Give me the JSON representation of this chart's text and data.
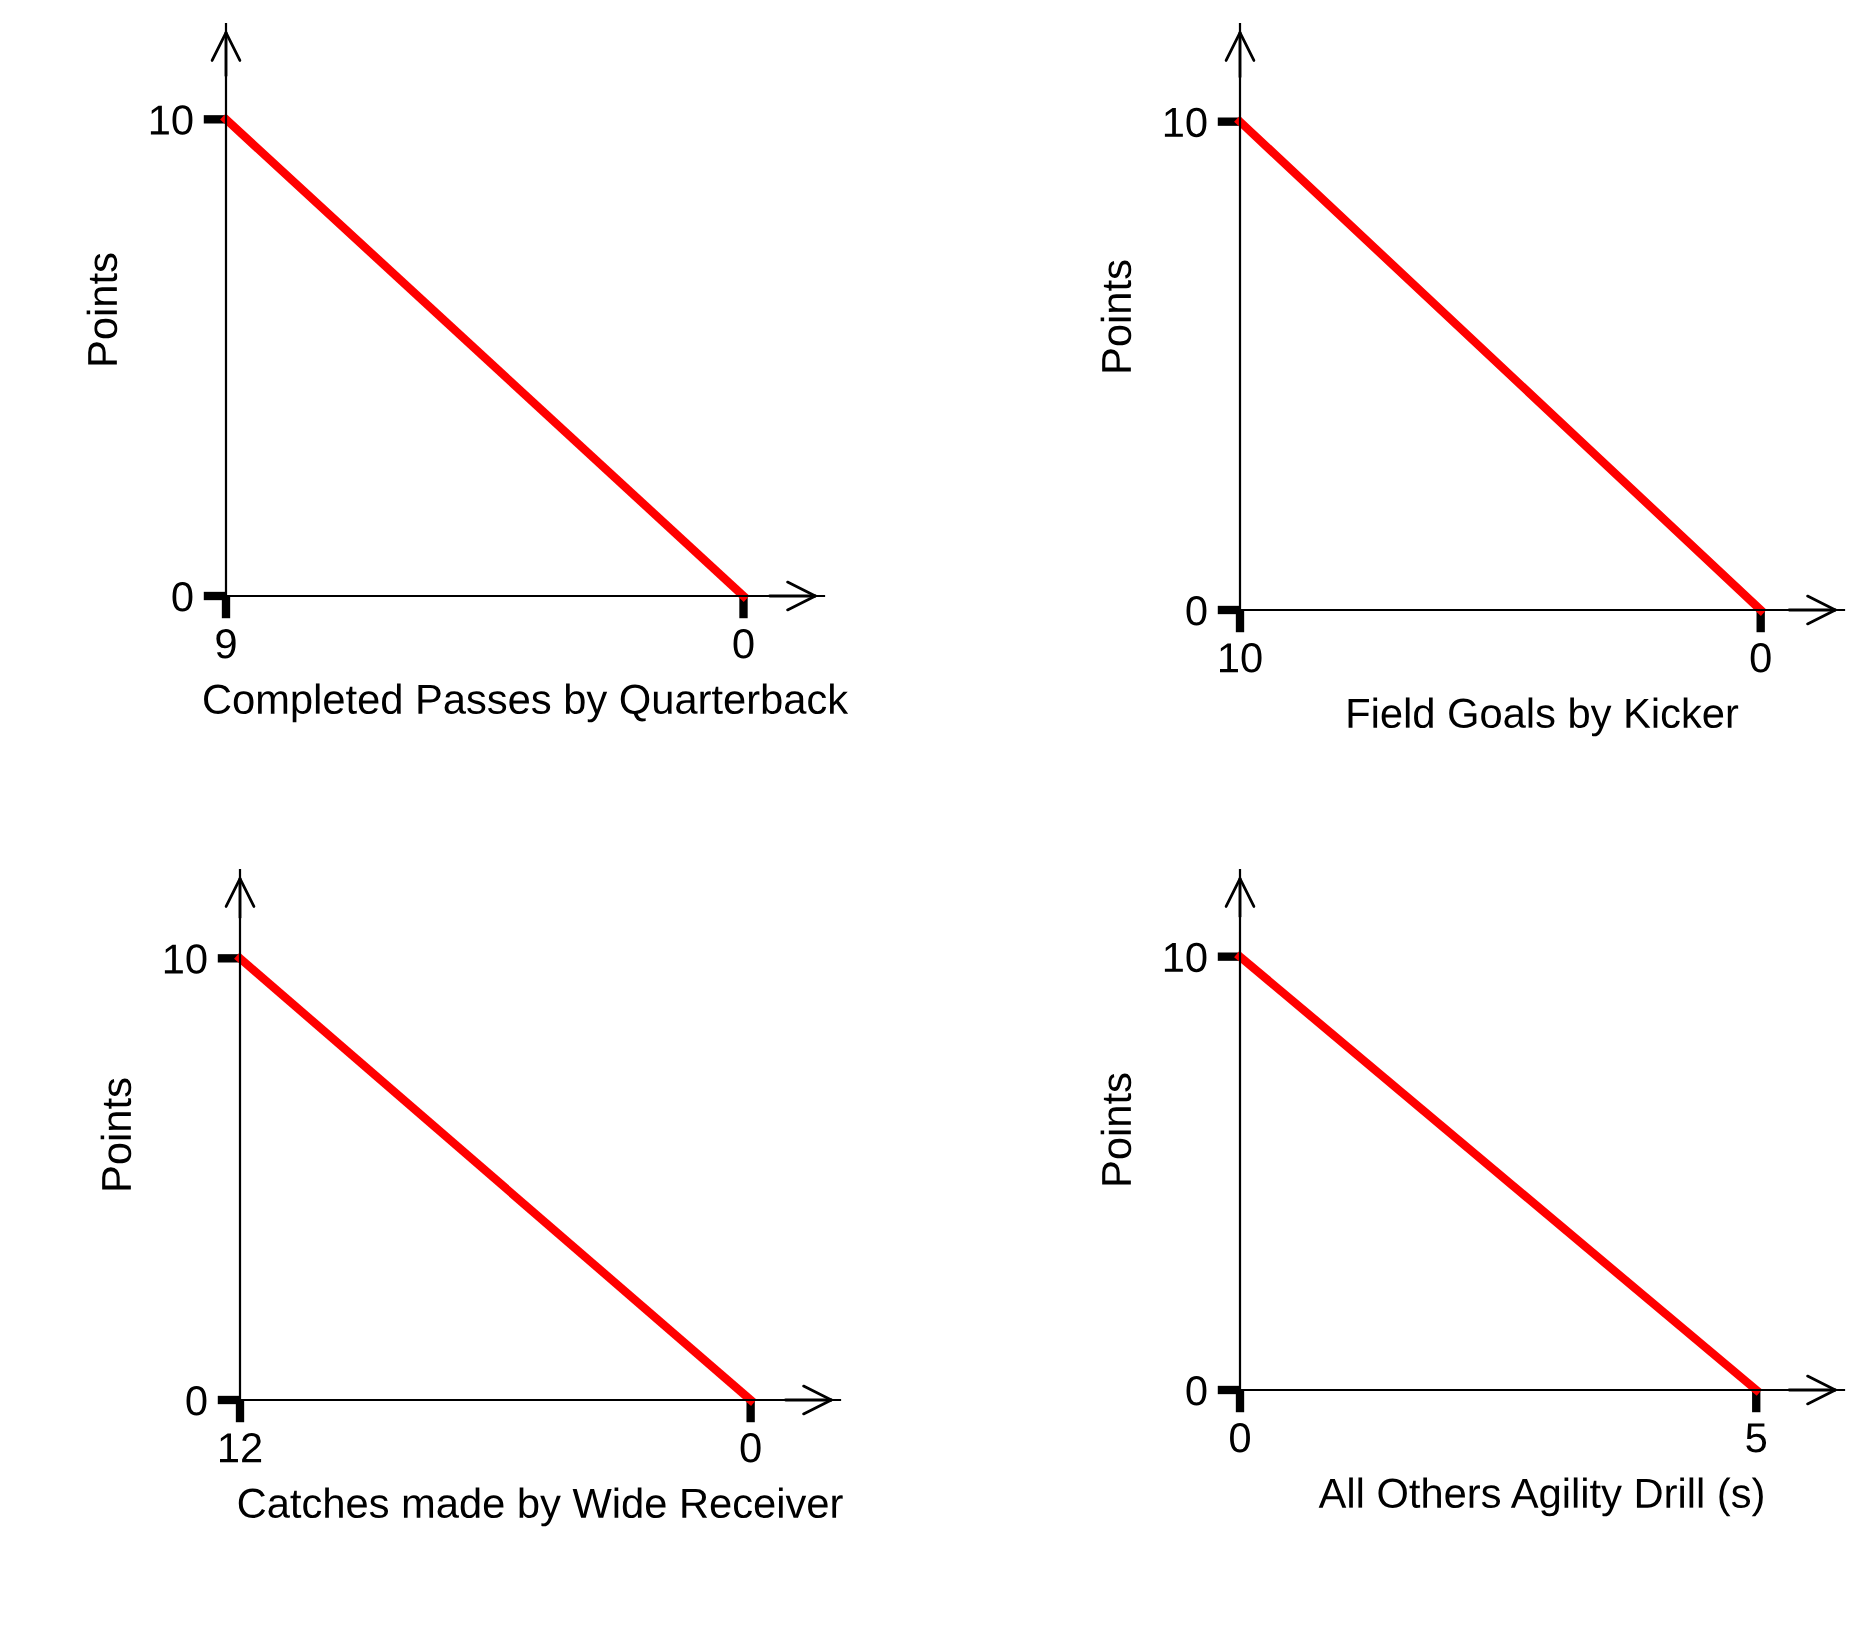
{
  "chart_data": [
    {
      "type": "line",
      "xlabel": "Completed Passes by Quarterback",
      "ylabel": "Points",
      "x": [
        9,
        0
      ],
      "series": [
        {
          "color": "#ff0000",
          "values": [
            10,
            0
          ]
        }
      ],
      "xlim": [
        9,
        -1.4
      ],
      "ylim": [
        0,
        12
      ],
      "xticks": [
        9,
        0
      ],
      "yticks": [
        0,
        10
      ],
      "grid": false,
      "legend": false,
      "marker": "none",
      "line_style": "solid"
    },
    {
      "type": "line",
      "xlabel": "Field Goals by Kicker",
      "ylabel": "Points",
      "x": [
        10,
        0
      ],
      "series": [
        {
          "color": "#ff0000",
          "values": [
            10,
            0
          ]
        }
      ],
      "xlim": [
        10,
        -1.6
      ],
      "ylim": [
        0,
        12
      ],
      "xticks": [
        10,
        0
      ],
      "yticks": [
        0,
        10
      ],
      "grid": false,
      "legend": false,
      "marker": "none",
      "line_style": "solid"
    },
    {
      "type": "line",
      "xlabel": "Catches made by Wide Receiver",
      "ylabel": "Points",
      "x": [
        12,
        0
      ],
      "series": [
        {
          "color": "#ff0000",
          "values": [
            10,
            0
          ]
        }
      ],
      "xlim": [
        12,
        -2.1
      ],
      "ylim": [
        0,
        12
      ],
      "xticks": [
        12,
        0
      ],
      "yticks": [
        0,
        10
      ],
      "grid": false,
      "legend": false,
      "marker": "none",
      "line_style": "solid"
    },
    {
      "type": "line",
      "xlabel": "All Others Agility Drill (s)",
      "ylabel": "Points",
      "x": [
        0,
        5
      ],
      "series": [
        {
          "color": "#ff0000",
          "values": [
            10,
            0
          ]
        }
      ],
      "xlim": [
        0,
        5.85
      ],
      "ylim": [
        0,
        12
      ],
      "xticks": [
        0,
        5
      ],
      "yticks": [
        0,
        10
      ],
      "grid": false,
      "legend": false,
      "marker": "none",
      "line_style": "solid"
    }
  ]
}
